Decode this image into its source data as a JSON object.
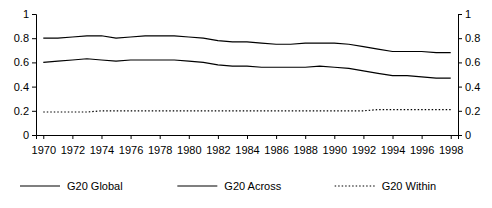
{
  "chart_data": {
    "type": "line",
    "x": [
      1970,
      1971,
      1972,
      1973,
      1974,
      1975,
      1976,
      1977,
      1978,
      1979,
      1980,
      1981,
      1982,
      1983,
      1984,
      1985,
      1986,
      1987,
      1988,
      1989,
      1990,
      1991,
      1992,
      1993,
      1994,
      1995,
      1996,
      1997,
      1998
    ],
    "series": [
      {
        "name": "G20 Global",
        "color": "#000000",
        "line_style": "solid",
        "values": [
          0.8,
          0.8,
          0.81,
          0.82,
          0.82,
          0.8,
          0.81,
          0.82,
          0.82,
          0.82,
          0.81,
          0.8,
          0.78,
          0.77,
          0.77,
          0.76,
          0.75,
          0.75,
          0.76,
          0.76,
          0.76,
          0.75,
          0.73,
          0.71,
          0.69,
          0.69,
          0.69,
          0.68,
          0.68
        ]
      },
      {
        "name": "G20 Across",
        "color": "#000000",
        "line_style": "solid",
        "values": [
          0.6,
          0.61,
          0.62,
          0.63,
          0.62,
          0.61,
          0.62,
          0.62,
          0.62,
          0.62,
          0.61,
          0.6,
          0.58,
          0.57,
          0.57,
          0.56,
          0.56,
          0.56,
          0.56,
          0.57,
          0.56,
          0.55,
          0.53,
          0.51,
          0.49,
          0.49,
          0.48,
          0.47,
          0.47
        ]
      },
      {
        "name": "G20 Within",
        "color": "#000000",
        "line_style": "dotted",
        "values": [
          0.19,
          0.19,
          0.19,
          0.19,
          0.2,
          0.2,
          0.2,
          0.2,
          0.2,
          0.2,
          0.2,
          0.2,
          0.2,
          0.2,
          0.2,
          0.2,
          0.2,
          0.2,
          0.2,
          0.2,
          0.2,
          0.2,
          0.2,
          0.21,
          0.21,
          0.21,
          0.21,
          0.21,
          0.21
        ]
      }
    ],
    "xlim": [
      1969.5,
      1998.5
    ],
    "xticks": [
      1970,
      1972,
      1974,
      1976,
      1978,
      1980,
      1982,
      1984,
      1986,
      1988,
      1990,
      1992,
      1994,
      1996,
      1998
    ],
    "ylim": [
      0,
      1
    ],
    "yticks": [
      0,
      0.2,
      0.4,
      0.6,
      0.8,
      1
    ],
    "y2lim": [
      0,
      1
    ],
    "y2ticks": [
      0,
      0.2,
      0.4,
      0.6,
      0.8,
      1
    ],
    "grid": false,
    "legend": "bottom"
  }
}
